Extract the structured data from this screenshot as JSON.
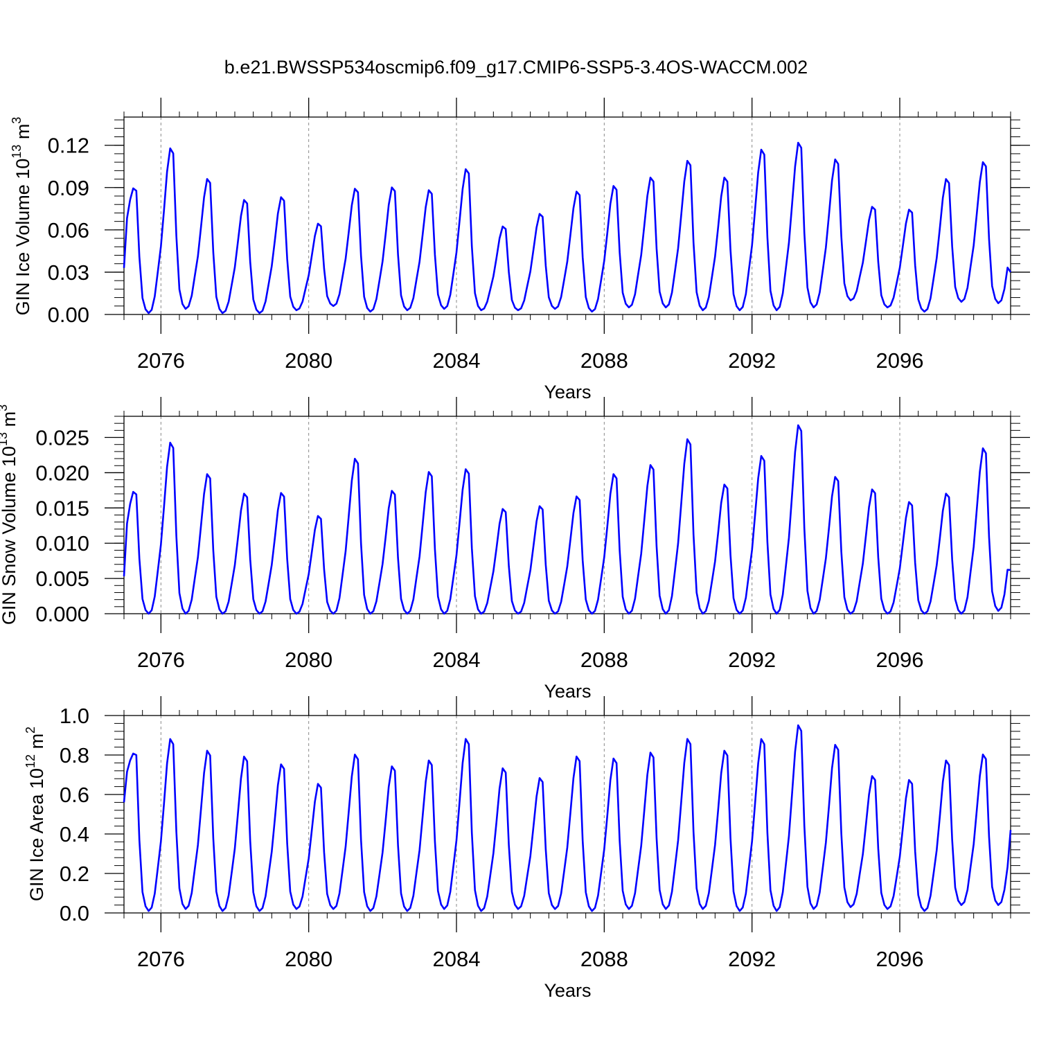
{
  "figure_title": "b.e21.BWSSP534oscmip6.f09_g17.CMIP6-SSP5-3.4OS-WACCM.002",
  "colors": {
    "series": "#0000ff",
    "axis": "#000000",
    "grid": "#888888"
  },
  "chart_data": [
    {
      "type": "line",
      "title": "b.e21.BWSSP534oscmip6.f09_g17.CMIP6-SSP5-3.4OS-WACCM.002",
      "xlabel": "Years",
      "ylabel": {
        "base": "GIN Ice Volume 10",
        "exp": "13",
        "unit": " m",
        "unit_exp": "3"
      },
      "xlim": [
        2075.0,
        2099.0
      ],
      "ylim": [
        0.0,
        0.14
      ],
      "x_ticks": [
        "2076",
        "2080",
        "2084",
        "2088",
        "2092",
        "2096"
      ],
      "x_tick_values": [
        2076,
        2080,
        2084,
        2088,
        2092,
        2096
      ],
      "y_ticks": [
        "0.00",
        "0.03",
        "0.06",
        "0.09",
        "0.12"
      ],
      "y_tick_values": [
        0.0,
        0.03,
        0.06,
        0.09,
        0.12
      ],
      "y_minor_step": 0.006,
      "x_minor_step": 0.5,
      "grid": "dashed vertical at major x ticks",
      "series": [
        {
          "name": "GIN Ice Volume",
          "color": "#0000ff",
          "annual_peaks": [
            0.09,
            0.119,
            0.097,
            0.082,
            0.084,
            0.065,
            0.09,
            0.091,
            0.089,
            0.104,
            0.063,
            0.072,
            0.088,
            0.092,
            0.098,
            0.11,
            0.098,
            0.118,
            0.123,
            0.111,
            0.077,
            0.075,
            0.097,
            0.109
          ],
          "annual_minima": [
            0.001,
            0.004,
            0.001,
            0.001,
            0.003,
            0.006,
            0.002,
            0.003,
            0.004,
            0.003,
            0.003,
            0.004,
            0.002,
            0.005,
            0.005,
            0.003,
            0.003,
            0.003,
            0.005,
            0.01,
            0.005,
            0.002,
            0.009,
            0.008
          ],
          "start_value": 0.033,
          "end_value": 0.03
        }
      ]
    },
    {
      "type": "line",
      "xlabel": "Years",
      "ylabel": {
        "base": "GIN Snow Volume 10",
        "exp": "13",
        "unit": " m",
        "unit_exp": "3"
      },
      "xlim": [
        2075.0,
        2099.0
      ],
      "ylim": [
        0.0,
        0.028
      ],
      "x_ticks": [
        "2076",
        "2080",
        "2084",
        "2088",
        "2092",
        "2096"
      ],
      "x_tick_values": [
        2076,
        2080,
        2084,
        2088,
        2092,
        2096
      ],
      "y_ticks": [
        "0.000",
        "0.005",
        "0.010",
        "0.015",
        "0.020",
        "0.025"
      ],
      "y_tick_values": [
        0.0,
        0.005,
        0.01,
        0.015,
        0.02,
        0.025
      ],
      "y_minor_step": 0.001,
      "x_minor_step": 0.5,
      "grid": "dashed vertical at major x ticks",
      "series": [
        {
          "name": "GIN Snow Volume",
          "color": "#0000ff",
          "annual_peaks": [
            0.0174,
            0.0245,
            0.02,
            0.0172,
            0.0173,
            0.014,
            0.0222,
            0.0176,
            0.0203,
            0.0207,
            0.015,
            0.0154,
            0.0168,
            0.02,
            0.0213,
            0.025,
            0.0185,
            0.0226,
            0.027,
            0.0196,
            0.0178,
            0.016,
            0.0172,
            0.0237
          ],
          "annual_minima": [
            0.0,
            0.0,
            0.0,
            0.0,
            0.0,
            0.0,
            0.0,
            0.0,
            0.0,
            0.0,
            0.0,
            0.0,
            0.0,
            0.0,
            0.0,
            0.0,
            0.0,
            0.0,
            0.0,
            0.0,
            0.0,
            0.0,
            0.0,
            0.0004
          ],
          "start_value": 0.0053,
          "end_value": 0.0062
        }
      ]
    },
    {
      "type": "line",
      "xlabel": "Years",
      "ylabel": {
        "base": "GIN Ice Area 10",
        "exp": "12",
        "unit": " m",
        "unit_exp": "2"
      },
      "xlim": [
        2075.0,
        2099.0
      ],
      "ylim": [
        0.0,
        1.0
      ],
      "x_ticks": [
        "2076",
        "2080",
        "2084",
        "2088",
        "2092",
        "2096"
      ],
      "x_tick_values": [
        2076,
        2080,
        2084,
        2088,
        2092,
        2096
      ],
      "y_ticks": [
        "0.0",
        "0.2",
        "0.4",
        "0.6",
        "0.8",
        "1.0"
      ],
      "y_tick_values": [
        0.0,
        0.2,
        0.4,
        0.6,
        0.8,
        1.0
      ],
      "y_minor_step": 0.04,
      "x_minor_step": 0.5,
      "grid": "dashed vertical at major x ticks",
      "series": [
        {
          "name": "GIN Ice Area",
          "color": "#0000ff",
          "annual_peaks": [
            0.81,
            0.89,
            0.83,
            0.8,
            0.76,
            0.66,
            0.81,
            0.75,
            0.78,
            0.89,
            0.74,
            0.69,
            0.8,
            0.79,
            0.82,
            0.89,
            0.83,
            0.89,
            0.96,
            0.86,
            0.7,
            0.68,
            0.78,
            0.81
          ],
          "annual_minima": [
            0.01,
            0.02,
            0.01,
            0.01,
            0.02,
            0.02,
            0.01,
            0.01,
            0.02,
            0.01,
            0.02,
            0.02,
            0.01,
            0.02,
            0.02,
            0.02,
            0.01,
            0.01,
            0.02,
            0.03,
            0.02,
            0.01,
            0.04,
            0.04
          ],
          "start_value": 0.56,
          "end_value": 0.42
        }
      ]
    }
  ]
}
